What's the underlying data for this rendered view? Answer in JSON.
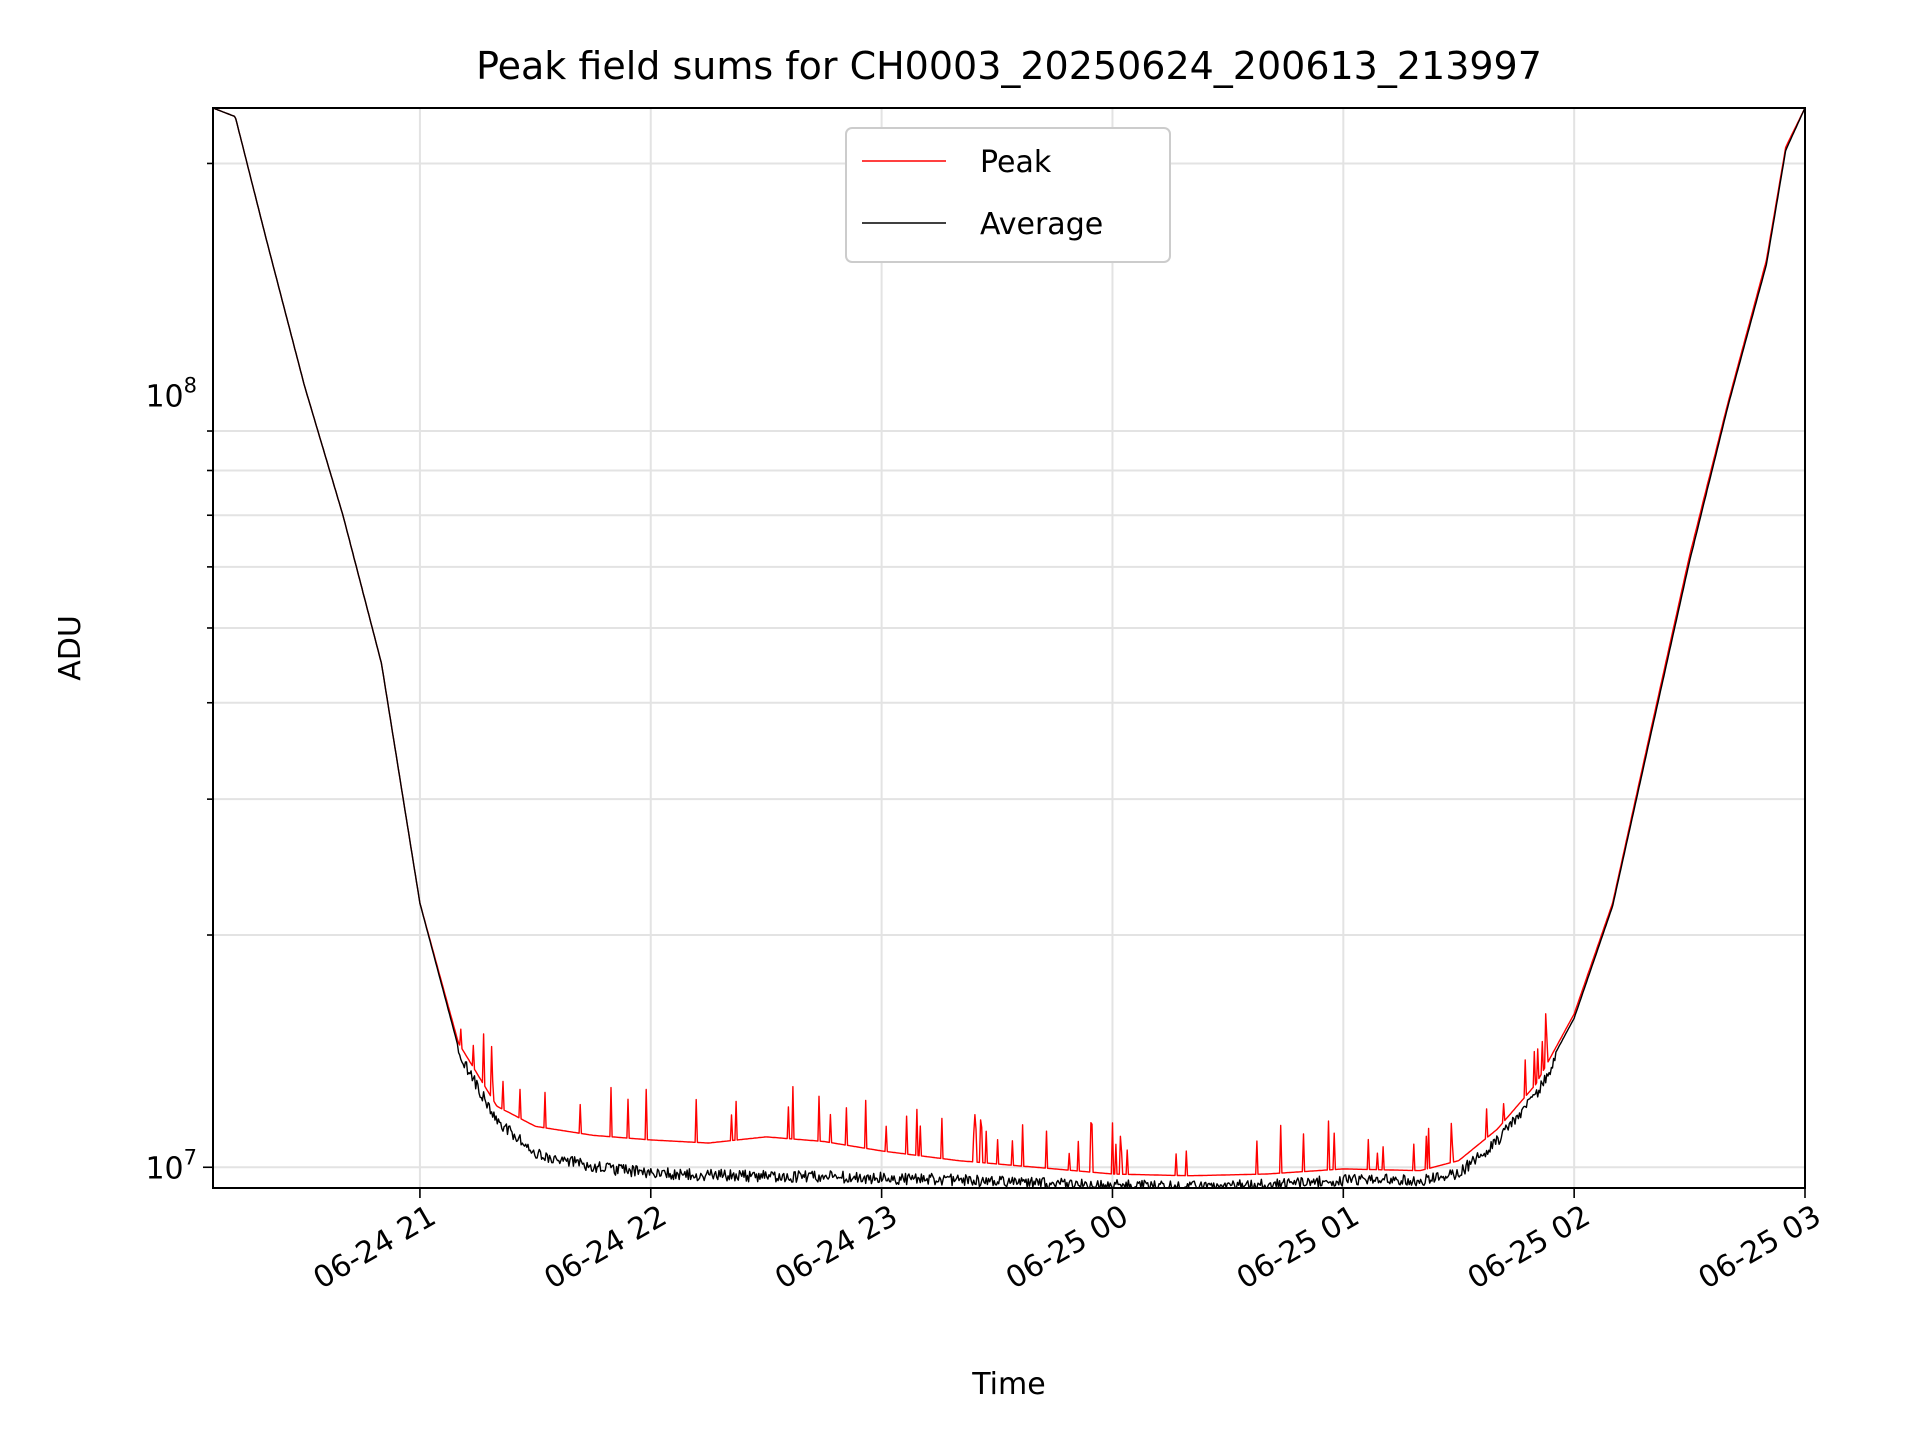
{
  "chart_data": {
    "type": "line",
    "title": "Peak field sums for CH0003_20250624_200613_213997",
    "xlabel": "Time",
    "ylabel": "ADU",
    "y_scale": "log",
    "ylim": [
      9400000,
      236000000
    ],
    "xlim": [
      "2025-06-24T20:06:13",
      "2025-06-25T03:00:00"
    ],
    "x_ticks": [
      {
        "value": "2025-06-24T21:00:00",
        "label": "06-24 21"
      },
      {
        "value": "2025-06-24T22:00:00",
        "label": "06-24 22"
      },
      {
        "value": "2025-06-24T23:00:00",
        "label": "06-24 23"
      },
      {
        "value": "2025-06-25T00:00:00",
        "label": "06-25 00"
      },
      {
        "value": "2025-06-25T01:00:00",
        "label": "06-25 01"
      },
      {
        "value": "2025-06-25T02:00:00",
        "label": "06-25 02"
      },
      {
        "value": "2025-06-25T03:00:00",
        "label": "06-25 03"
      }
    ],
    "y_ticks": [
      {
        "value": 10000000,
        "base": "10",
        "exponent": "7"
      },
      {
        "value": 100000000,
        "base": "10",
        "exponent": "8"
      }
    ],
    "grid": true,
    "legend": "upper center",
    "series": [
      {
        "name": "Peak",
        "color": "#ff0000",
        "x": [
          "2025-06-24T20:06:13",
          "2025-06-24T20:12:00",
          "2025-06-24T20:20:00",
          "2025-06-24T20:30:00",
          "2025-06-24T20:40:00",
          "2025-06-24T20:50:00",
          "2025-06-24T21:00:00",
          "2025-06-24T21:10:00",
          "2025-06-24T21:20:00",
          "2025-06-24T21:30:00",
          "2025-06-24T21:45:00",
          "2025-06-24T22:00:00",
          "2025-06-24T22:15:00",
          "2025-06-24T22:30:00",
          "2025-06-24T22:45:00",
          "2025-06-24T23:00:00",
          "2025-06-24T23:20:00",
          "2025-06-24T23:40:00",
          "2025-06-25T00:00:00",
          "2025-06-25T00:20:00",
          "2025-06-25T00:40:00",
          "2025-06-25T01:00:00",
          "2025-06-25T01:20:00",
          "2025-06-25T01:30:00",
          "2025-06-25T01:40:00",
          "2025-06-25T01:50:00",
          "2025-06-25T02:00:00",
          "2025-06-25T02:10:00",
          "2025-06-25T02:20:00",
          "2025-06-25T02:30:00",
          "2025-06-25T02:40:00",
          "2025-06-25T02:50:00",
          "2025-06-25T02:55:00",
          "2025-06-25T03:00:00"
        ],
        "y": [
          236000000,
          230000000,
          160000000,
          103000000,
          70000000,
          45000000,
          22000000,
          14500000,
          12000000,
          11300000,
          11000000,
          10850000,
          10750000,
          10950000,
          10800000,
          10500000,
          10200000,
          10000000,
          9800000,
          9750000,
          9800000,
          9950000,
          9900000,
          10200000,
          11200000,
          12800000,
          15800000,
          22000000,
          37000000,
          62000000,
          98000000,
          150000000,
          210000000,
          236000000
        ]
      },
      {
        "name": "Average",
        "color": "#000000",
        "x": [
          "2025-06-24T20:06:13",
          "2025-06-24T20:12:00",
          "2025-06-24T20:20:00",
          "2025-06-24T20:30:00",
          "2025-06-24T20:40:00",
          "2025-06-24T20:50:00",
          "2025-06-24T21:00:00",
          "2025-06-24T21:10:00",
          "2025-06-24T21:20:00",
          "2025-06-24T21:30:00",
          "2025-06-24T21:45:00",
          "2025-06-24T22:00:00",
          "2025-06-24T22:15:00",
          "2025-06-24T22:30:00",
          "2025-06-24T22:45:00",
          "2025-06-24T23:00:00",
          "2025-06-24T23:20:00",
          "2025-06-24T23:40:00",
          "2025-06-25T00:00:00",
          "2025-06-25T00:20:00",
          "2025-06-25T00:40:00",
          "2025-06-25T01:00:00",
          "2025-06-25T01:20:00",
          "2025-06-25T01:30:00",
          "2025-06-25T01:40:00",
          "2025-06-25T01:50:00",
          "2025-06-25T02:00:00",
          "2025-06-25T02:10:00",
          "2025-06-25T02:20:00",
          "2025-06-25T02:30:00",
          "2025-06-25T02:40:00",
          "2025-06-25T02:50:00",
          "2025-06-25T02:55:00",
          "2025-06-25T03:00:00"
        ],
        "y": [
          236000000,
          230000000,
          160000000,
          103000000,
          70000000,
          45000000,
          22000000,
          14300000,
          11700000,
          10600000,
          10200000,
          10000000,
          9950000,
          9900000,
          9900000,
          9850000,
          9800000,
          9700000,
          9650000,
          9600000,
          9650000,
          9800000,
          9800000,
          10000000,
          11000000,
          12600000,
          15600000,
          21800000,
          36500000,
          61000000,
          97000000,
          148000000,
          208000000,
          236000000
        ]
      }
    ]
  }
}
